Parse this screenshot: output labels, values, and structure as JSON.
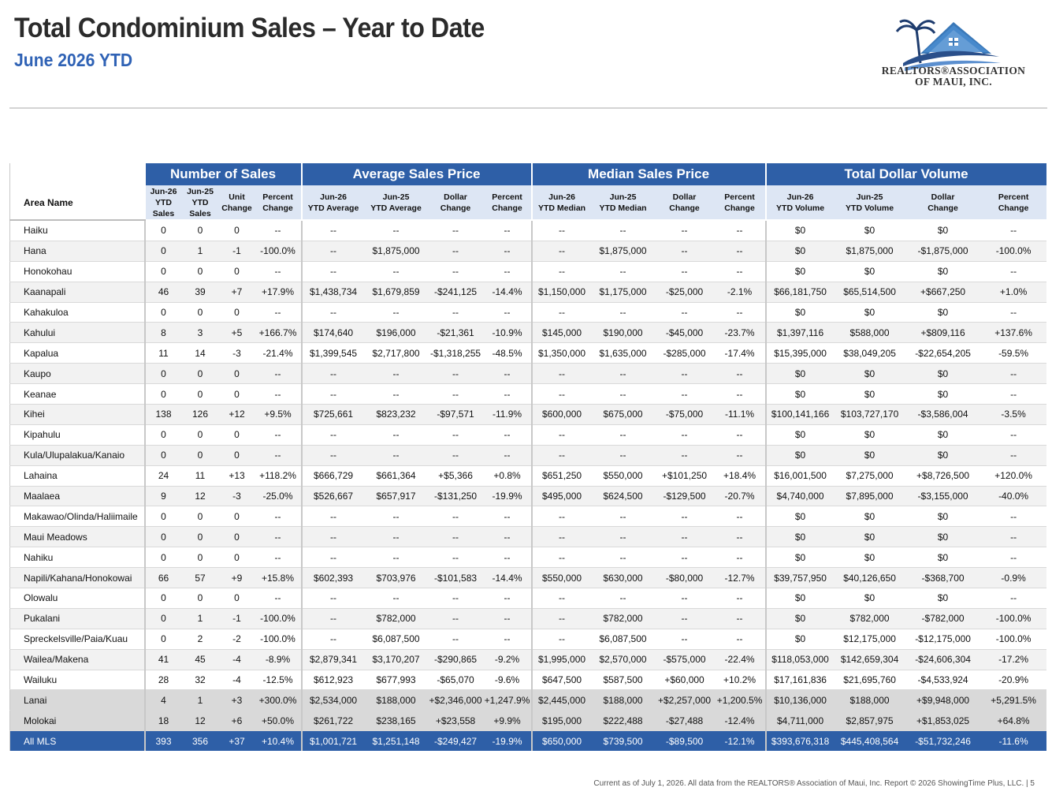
{
  "header": {
    "title": "Total Condominium Sales – Year to Date",
    "subtitle": "June 2026 YTD"
  },
  "logo": {
    "line1": "REALTORS®ASSOCIATION",
    "line2": "OF MAUI, INC.",
    "colors": {
      "house": "#3a78b8",
      "swoosh": "#2a4f8a",
      "palm": "#1e3c6e"
    }
  },
  "table": {
    "groups": [
      "Number of Sales",
      "Average Sales Price",
      "Median Sales Price",
      "Total Dollar Volume"
    ],
    "area_header": "Area Name",
    "subheaders": [
      [
        "Jun-26",
        "YTD",
        "Sales"
      ],
      [
        "Jun-25",
        "YTD",
        "Sales"
      ],
      [
        "Unit",
        "Change"
      ],
      [
        "Percent",
        "Change"
      ],
      [
        "Jun-26",
        "YTD Average"
      ],
      [
        "Jun-25",
        "YTD Average"
      ],
      [
        "Dollar",
        "Change"
      ],
      [
        "Percent",
        "Change"
      ],
      [
        "Jun-26",
        "YTD Median"
      ],
      [
        "Jun-25",
        "YTD Median"
      ],
      [
        "Dollar",
        "Change"
      ],
      [
        "Percent",
        "Change"
      ],
      [
        "Jun-26",
        "YTD Volume"
      ],
      [
        "Jun-25",
        "YTD Volume"
      ],
      [
        "Dollar",
        "Change"
      ],
      [
        "Percent",
        "Change"
      ]
    ],
    "rows": [
      [
        "Haiku",
        "0",
        "0",
        "0",
        "--",
        "--",
        "--",
        "--",
        "--",
        "--",
        "--",
        "--",
        "--",
        "$0",
        "$0",
        "$0",
        "--"
      ],
      [
        "Hana",
        "0",
        "1",
        "-1",
        "-100.0%",
        "--",
        "$1,875,000",
        "--",
        "--",
        "--",
        "$1,875,000",
        "--",
        "--",
        "$0",
        "$1,875,000",
        "-$1,875,000",
        "-100.0%"
      ],
      [
        "Honokohau",
        "0",
        "0",
        "0",
        "--",
        "--",
        "--",
        "--",
        "--",
        "--",
        "--",
        "--",
        "--",
        "$0",
        "$0",
        "$0",
        "--"
      ],
      [
        "Kaanapali",
        "46",
        "39",
        "+7",
        "+17.9%",
        "$1,438,734",
        "$1,679,859",
        "-$241,125",
        "-14.4%",
        "$1,150,000",
        "$1,175,000",
        "-$25,000",
        "-2.1%",
        "$66,181,750",
        "$65,514,500",
        "+$667,250",
        "+1.0%"
      ],
      [
        "Kahakuloa",
        "0",
        "0",
        "0",
        "--",
        "--",
        "--",
        "--",
        "--",
        "--",
        "--",
        "--",
        "--",
        "$0",
        "$0",
        "$0",
        "--"
      ],
      [
        "Kahului",
        "8",
        "3",
        "+5",
        "+166.7%",
        "$174,640",
        "$196,000",
        "-$21,361",
        "-10.9%",
        "$145,000",
        "$190,000",
        "-$45,000",
        "-23.7%",
        "$1,397,116",
        "$588,000",
        "+$809,116",
        "+137.6%"
      ],
      [
        "Kapalua",
        "11",
        "14",
        "-3",
        "-21.4%",
        "$1,399,545",
        "$2,717,800",
        "-$1,318,255",
        "-48.5%",
        "$1,350,000",
        "$1,635,000",
        "-$285,000",
        "-17.4%",
        "$15,395,000",
        "$38,049,205",
        "-$22,654,205",
        "-59.5%"
      ],
      [
        "Kaupo",
        "0",
        "0",
        "0",
        "--",
        "--",
        "--",
        "--",
        "--",
        "--",
        "--",
        "--",
        "--",
        "$0",
        "$0",
        "$0",
        "--"
      ],
      [
        "Keanae",
        "0",
        "0",
        "0",
        "--",
        "--",
        "--",
        "--",
        "--",
        "--",
        "--",
        "--",
        "--",
        "$0",
        "$0",
        "$0",
        "--"
      ],
      [
        "Kihei",
        "138",
        "126",
        "+12",
        "+9.5%",
        "$725,661",
        "$823,232",
        "-$97,571",
        "-11.9%",
        "$600,000",
        "$675,000",
        "-$75,000",
        "-11.1%",
        "$100,141,166",
        "$103,727,170",
        "-$3,586,004",
        "-3.5%"
      ],
      [
        "Kipahulu",
        "0",
        "0",
        "0",
        "--",
        "--",
        "--",
        "--",
        "--",
        "--",
        "--",
        "--",
        "--",
        "$0",
        "$0",
        "$0",
        "--"
      ],
      [
        "Kula/Ulupalakua/Kanaio",
        "0",
        "0",
        "0",
        "--",
        "--",
        "--",
        "--",
        "--",
        "--",
        "--",
        "--",
        "--",
        "$0",
        "$0",
        "$0",
        "--"
      ],
      [
        "Lahaina",
        "24",
        "11",
        "+13",
        "+118.2%",
        "$666,729",
        "$661,364",
        "+$5,366",
        "+0.8%",
        "$651,250",
        "$550,000",
        "+$101,250",
        "+18.4%",
        "$16,001,500",
        "$7,275,000",
        "+$8,726,500",
        "+120.0%"
      ],
      [
        "Maalaea",
        "9",
        "12",
        "-3",
        "-25.0%",
        "$526,667",
        "$657,917",
        "-$131,250",
        "-19.9%",
        "$495,000",
        "$624,500",
        "-$129,500",
        "-20.7%",
        "$4,740,000",
        "$7,895,000",
        "-$3,155,000",
        "-40.0%"
      ],
      [
        "Makawao/Olinda/Haliimaile",
        "0",
        "0",
        "0",
        "--",
        "--",
        "--",
        "--",
        "--",
        "--",
        "--",
        "--",
        "--",
        "$0",
        "$0",
        "$0",
        "--"
      ],
      [
        "Maui Meadows",
        "0",
        "0",
        "0",
        "--",
        "--",
        "--",
        "--",
        "--",
        "--",
        "--",
        "--",
        "--",
        "$0",
        "$0",
        "$0",
        "--"
      ],
      [
        "Nahiku",
        "0",
        "0",
        "0",
        "--",
        "--",
        "--",
        "--",
        "--",
        "--",
        "--",
        "--",
        "--",
        "$0",
        "$0",
        "$0",
        "--"
      ],
      [
        "Napili/Kahana/Honokowai",
        "66",
        "57",
        "+9",
        "+15.8%",
        "$602,393",
        "$703,976",
        "-$101,583",
        "-14.4%",
        "$550,000",
        "$630,000",
        "-$80,000",
        "-12.7%",
        "$39,757,950",
        "$40,126,650",
        "-$368,700",
        "-0.9%"
      ],
      [
        "Olowalu",
        "0",
        "0",
        "0",
        "--",
        "--",
        "--",
        "--",
        "--",
        "--",
        "--",
        "--",
        "--",
        "$0",
        "$0",
        "$0",
        "--"
      ],
      [
        "Pukalani",
        "0",
        "1",
        "-1",
        "-100.0%",
        "--",
        "$782,000",
        "--",
        "--",
        "--",
        "$782,000",
        "--",
        "--",
        "$0",
        "$782,000",
        "-$782,000",
        "-100.0%"
      ],
      [
        "Spreckelsville/Paia/Kuau",
        "0",
        "2",
        "-2",
        "-100.0%",
        "--",
        "$6,087,500",
        "--",
        "--",
        "--",
        "$6,087,500",
        "--",
        "--",
        "$0",
        "$12,175,000",
        "-$12,175,000",
        "-100.0%"
      ],
      [
        "Wailea/Makena",
        "41",
        "45",
        "-4",
        "-8.9%",
        "$2,879,341",
        "$3,170,207",
        "-$290,865",
        "-9.2%",
        "$1,995,000",
        "$2,570,000",
        "-$575,000",
        "-22.4%",
        "$118,053,000",
        "$142,659,304",
        "-$24,606,304",
        "-17.2%"
      ],
      [
        "Wailuku",
        "28",
        "32",
        "-4",
        "-12.5%",
        "$612,923",
        "$677,993",
        "-$65,070",
        "-9.6%",
        "$647,500",
        "$587,500",
        "+$60,000",
        "+10.2%",
        "$17,161,836",
        "$21,695,760",
        "-$4,533,924",
        "-20.9%"
      ]
    ],
    "island_rows": [
      [
        "Lanai",
        "4",
        "1",
        "+3",
        "+300.0%",
        "$2,534,000",
        "$188,000",
        "+$2,346,000",
        "+1,247.9%",
        "$2,445,000",
        "$188,000",
        "+$2,257,000",
        "+1,200.5%",
        "$10,136,000",
        "$188,000",
        "+$9,948,000",
        "+5,291.5%"
      ],
      [
        "Molokai",
        "18",
        "12",
        "+6",
        "+50.0%",
        "$261,722",
        "$238,165",
        "+$23,558",
        "+9.9%",
        "$195,000",
        "$222,488",
        "-$27,488",
        "-12.4%",
        "$4,711,000",
        "$2,857,975",
        "+$1,853,025",
        "+64.8%"
      ]
    ],
    "total_row": [
      "All MLS",
      "393",
      "356",
      "+37",
      "+10.4%",
      "$1,001,721",
      "$1,251,148",
      "-$249,427",
      "-19.9%",
      "$650,000",
      "$739,500",
      "-$89,500",
      "-12.1%",
      "$393,676,318",
      "$445,408,564",
      "-$51,732,246",
      "-11.6%"
    ]
  },
  "footer": "Current as of July 1, 2026. All data from the REALTORS® Association of Maui, Inc. Report © 2026 ShowingTime Plus, LLC.  |  5"
}
